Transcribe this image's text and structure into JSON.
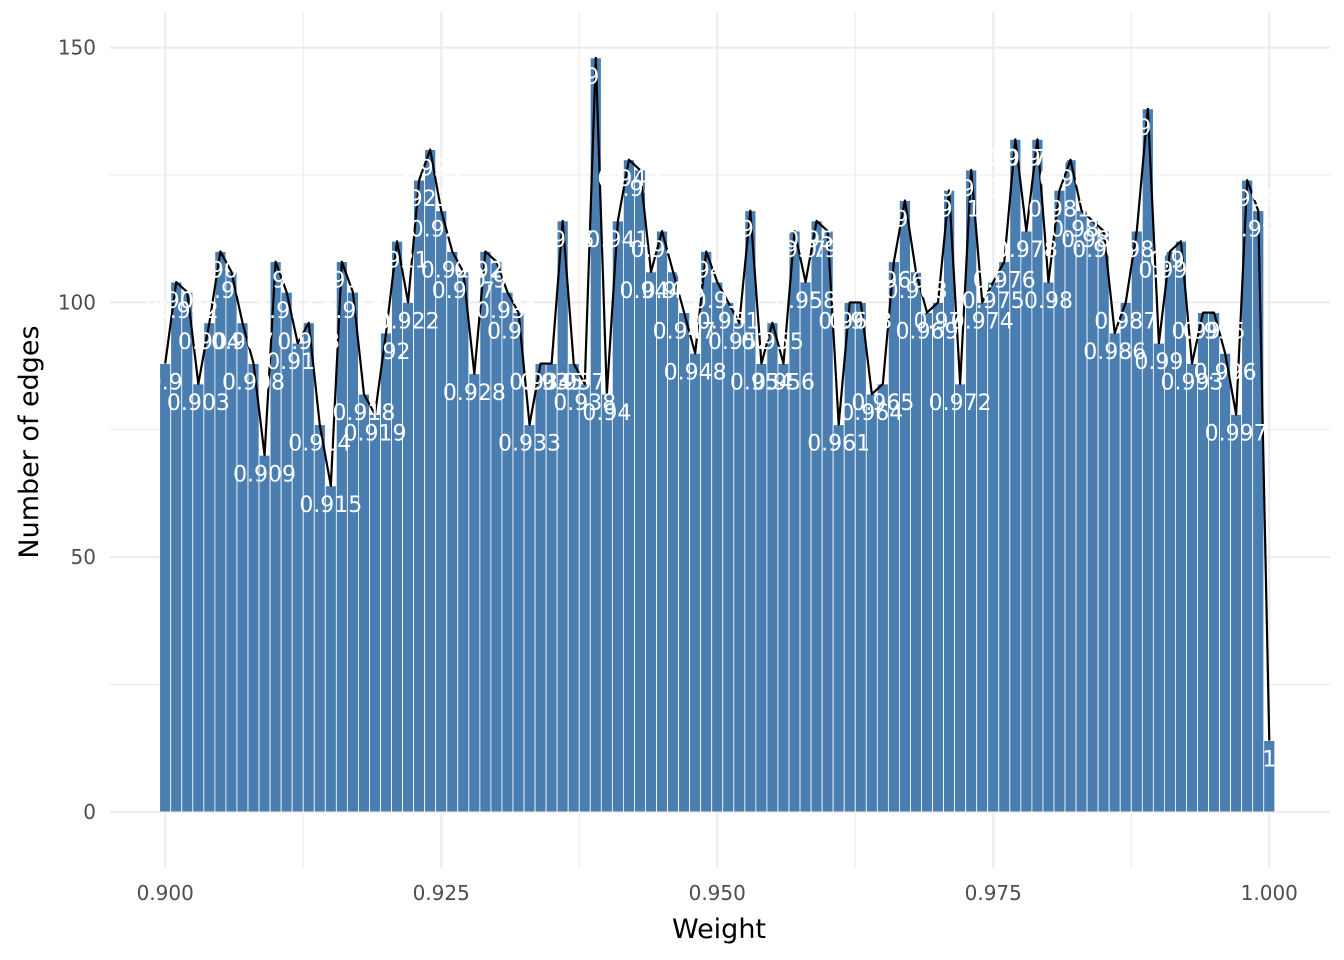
{
  "chart_data": {
    "type": "bar",
    "title": "",
    "xlabel": "Weight",
    "ylabel": "Number of edges",
    "xlim": [
      0.895,
      1.0055
    ],
    "ylim": [
      -11,
      157
    ],
    "xticks": [
      0.9,
      0.925,
      0.95,
      0.975,
      1.0
    ],
    "xtick_labels": [
      "0.900",
      "0.925",
      "0.950",
      "0.975",
      "1.000"
    ],
    "yticks": [
      0,
      50,
      100,
      150
    ],
    "ytick_labels": [
      "0",
      "50",
      "100",
      "150"
    ],
    "grid": true,
    "legend": "none",
    "bar_width": 0.001,
    "x": [
      0.9,
      0.901,
      0.902,
      0.903,
      0.904,
      0.905,
      0.906,
      0.907,
      0.908,
      0.909,
      0.91,
      0.911,
      0.912,
      0.913,
      0.914,
      0.915,
      0.916,
      0.917,
      0.918,
      0.919,
      0.92,
      0.921,
      0.922,
      0.923,
      0.924,
      0.925,
      0.926,
      0.927,
      0.928,
      0.929,
      0.93,
      0.931,
      0.932,
      0.933,
      0.934,
      0.935,
      0.936,
      0.937,
      0.938,
      0.939,
      0.94,
      0.941,
      0.942,
      0.943,
      0.944,
      0.945,
      0.946,
      0.947,
      0.948,
      0.949,
      0.95,
      0.951,
      0.952,
      0.953,
      0.954,
      0.955,
      0.956,
      0.957,
      0.958,
      0.959,
      0.96,
      0.961,
      0.962,
      0.963,
      0.964,
      0.965,
      0.966,
      0.967,
      0.968,
      0.969,
      0.97,
      0.971,
      0.972,
      0.973,
      0.974,
      0.975,
      0.976,
      0.977,
      0.978,
      0.979,
      0.98,
      0.981,
      0.982,
      0.983,
      0.984,
      0.985,
      0.986,
      0.987,
      0.988,
      0.989,
      0.99,
      0.991,
      0.992,
      0.993,
      0.994,
      0.995,
      0.996,
      0.997,
      0.998,
      0.999,
      1.0
    ],
    "values": [
      88,
      104,
      102,
      84,
      96,
      110,
      106,
      96,
      88,
      70,
      108,
      102,
      92,
      96,
      76,
      64,
      108,
      102,
      82,
      78,
      94,
      112,
      100,
      124,
      130,
      118,
      110,
      106,
      86,
      110,
      108,
      102,
      98,
      76,
      88,
      88,
      116,
      88,
      84,
      148,
      82,
      116,
      128,
      126,
      106,
      114,
      106,
      98,
      90,
      110,
      104,
      100,
      96,
      118,
      88,
      96,
      88,
      114,
      104,
      116,
      114,
      76,
      100,
      100,
      82,
      84,
      108,
      120,
      106,
      98,
      100,
      122,
      84,
      126,
      100,
      104,
      108,
      132,
      114,
      132,
      104,
      122,
      128,
      118,
      116,
      114,
      94,
      100,
      114,
      138,
      92,
      110,
      112,
      88,
      98,
      98,
      90,
      78,
      124,
      118,
      14
    ],
    "labels": [
      "0.9",
      "0.901",
      "0.902",
      "0.903",
      "0.904",
      "0.905",
      "0.906",
      "0.907",
      "0.908",
      "0.909",
      "0.91",
      "0.911",
      "0.912",
      "0.913",
      "0.914",
      "0.915",
      "0.916",
      "0.917",
      "0.918",
      "0.919",
      "0.92",
      "0.921",
      "0.922",
      "0.923",
      "0.924",
      "0.925",
      "0.926",
      "0.927",
      "0.928",
      "0.929",
      "0.93",
      "0.931",
      "0.932",
      "0.933",
      "0.934",
      "0.935",
      "0.936",
      "0.937",
      "0.938",
      "0.939",
      "0.94",
      "0.941",
      "0.942",
      "0.943",
      "0.944",
      "0.945",
      "0.946",
      "0.947",
      "0.948",
      "0.949",
      "0.95",
      "0.951",
      "0.952",
      "0.953",
      "0.954",
      "0.955",
      "0.956",
      "0.957",
      "0.958",
      "0.959",
      "0.96",
      "0.961",
      "0.962",
      "0.963",
      "0.964",
      "0.965",
      "0.966",
      "0.967",
      "0.968",
      "0.969",
      "0.97",
      "0.971",
      "0.972",
      "0.973",
      "0.974",
      "0.975",
      "0.976",
      "0.977",
      "0.978",
      "0.979",
      "0.98",
      "0.981",
      "0.982",
      "0.983",
      "0.984",
      "0.985",
      "0.986",
      "0.987",
      "0.988",
      "0.989",
      "0.99",
      "0.991",
      "0.992",
      "0.993",
      "0.994",
      "0.995",
      "0.996",
      "0.997",
      "0.998",
      "0.999",
      "1"
    ],
    "colors": {
      "bar_fill": "#4a7eb1",
      "bar_outline": "#ffffff",
      "line": "#000000",
      "label": "#ffffff",
      "grid": "#ebebeb",
      "tick_text": "#4d4d4d"
    }
  }
}
